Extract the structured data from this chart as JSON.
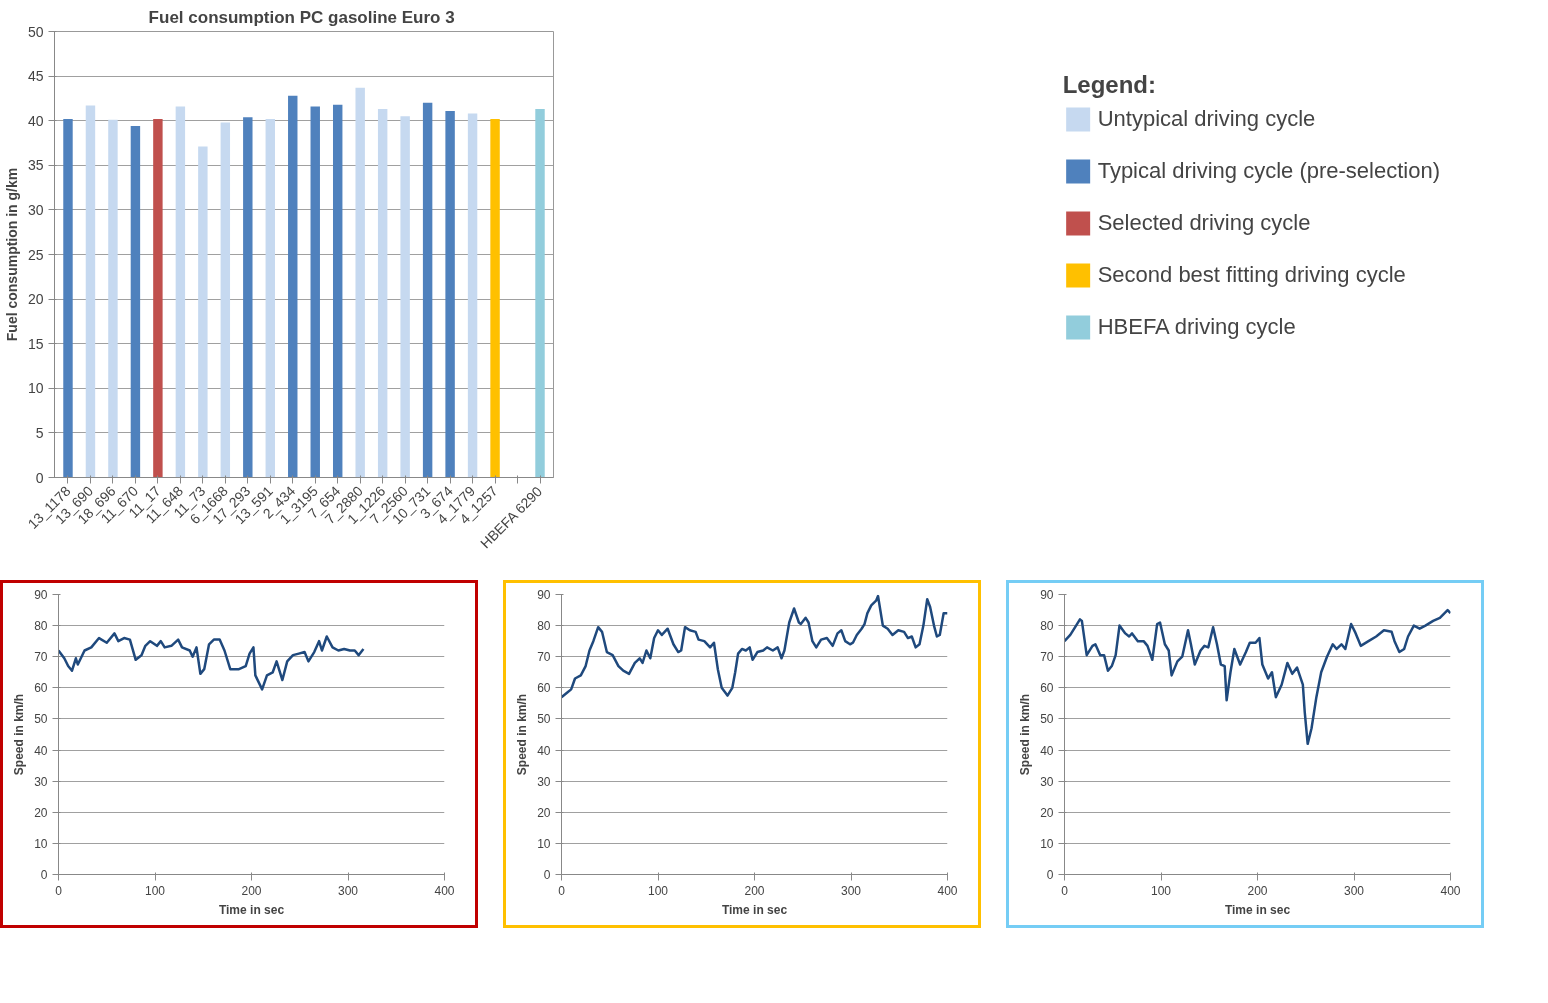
{
  "chart_data": [
    {
      "type": "bar",
      "title": "Fuel consumption  PC gasoline Euro 3",
      "ylabel": "Fuel consumption in g/km",
      "legend_title": "Legend:",
      "categories": [
        "13_1178",
        "13_690",
        "18_696",
        "11_670",
        "11_17",
        "11_648",
        "11_73",
        "6_1668",
        "17_293",
        "13_591",
        "2_434",
        "1_3195",
        "7_654",
        "7_2880",
        "1_1226",
        "7_2560",
        "10_731",
        "3_674",
        "4_1779",
        "4_1257",
        null,
        "HBEFA 6290"
      ],
      "series": [
        {
          "name": "Untypical driving cycle",
          "color": "#c6d9f0",
          "values": [
            null,
            41.7,
            40.1,
            null,
            null,
            41.6,
            37.1,
            39.8,
            null,
            40.2,
            null,
            null,
            null,
            43.7,
            41.3,
            40.5,
            null,
            null,
            40.8,
            null,
            null,
            null
          ]
        },
        {
          "name": "Typical driving cycle (pre-selection)",
          "color": "#4f81bd",
          "values": [
            40.2,
            null,
            null,
            39.4,
            null,
            null,
            null,
            null,
            40.4,
            null,
            42.8,
            41.6,
            41.8,
            null,
            null,
            null,
            42.0,
            41.1,
            null,
            null,
            null,
            null
          ]
        },
        {
          "name": "Selected driving cycle",
          "color": "#c0504d",
          "values": [
            null,
            null,
            null,
            null,
            40.2,
            null,
            null,
            null,
            null,
            null,
            null,
            null,
            null,
            null,
            null,
            null,
            null,
            null,
            null,
            null,
            null,
            null
          ]
        },
        {
          "name": "Second best fitting driving cycle",
          "color": "#ffc000",
          "values": [
            null,
            null,
            null,
            null,
            null,
            null,
            null,
            null,
            null,
            null,
            null,
            null,
            null,
            null,
            null,
            null,
            null,
            null,
            null,
            40.2,
            null,
            null
          ]
        },
        {
          "name": "HBEFA driving cycle",
          "color": "#92cddc",
          "values": [
            null,
            null,
            null,
            null,
            null,
            null,
            null,
            null,
            null,
            null,
            null,
            null,
            null,
            null,
            null,
            null,
            null,
            null,
            null,
            null,
            null,
            41.3
          ]
        }
      ],
      "ylim": [
        0,
        50
      ],
      "yticks": [
        0,
        5,
        10,
        15,
        20,
        25,
        30,
        35,
        40,
        45,
        50
      ],
      "grid": "y",
      "legend": "right"
    },
    {
      "type": "line",
      "xlabel": "Time in sec",
      "ylabel": "Speed in km/h",
      "xlim": [
        0,
        400
      ],
      "xticks": [
        0,
        100,
        200,
        300,
        400
      ],
      "ylim": [
        0,
        90
      ],
      "yticks": [
        0,
        10,
        20,
        30,
        40,
        50,
        60,
        70,
        80,
        90
      ],
      "grid": "y",
      "series": [
        {
          "color": "#1f497d",
          "x": [
            0,
            6,
            10,
            14,
            18,
            20,
            27,
            34,
            42,
            50,
            58,
            62,
            68,
            74,
            80,
            86,
            90,
            95,
            102,
            106,
            110,
            117,
            124,
            128,
            136,
            139,
            143,
            147,
            151,
            156,
            161,
            167,
            172,
            178,
            187,
            194,
            198,
            202,
            204,
            211,
            216,
            222,
            226,
            232,
            237,
            243,
            249,
            255,
            259,
            265,
            270,
            273,
            278,
            284,
            290,
            296,
            302,
            307,
            311,
            316
          ],
          "values": [
            72,
            69.5,
            67,
            65.5,
            69.5,
            67.5,
            72,
            73,
            76,
            74.5,
            77.5,
            75,
            76,
            75.5,
            69,
            70.5,
            73.5,
            75,
            73.5,
            75,
            73,
            73.5,
            75.5,
            73,
            72,
            70,
            73,
            64.5,
            66,
            74,
            75.5,
            75.5,
            72,
            66,
            66,
            67,
            71,
            73,
            64,
            59.5,
            64,
            65,
            68.5,
            62.5,
            68.5,
            70.5,
            71,
            71.5,
            68.5,
            71.5,
            75,
            72,
            76.5,
            73,
            72,
            72.5,
            72,
            72,
            70.5,
            72.5
          ]
        }
      ]
    },
    {
      "type": "line",
      "xlabel": "Time in sec",
      "ylabel": "Speed in km/h",
      "xlim": [
        0,
        400
      ],
      "xticks": [
        0,
        100,
        200,
        300,
        400
      ],
      "ylim": [
        0,
        90
      ],
      "yticks": [
        0,
        10,
        20,
        30,
        40,
        50,
        60,
        70,
        80,
        90
      ],
      "grid": "y",
      "series": [
        {
          "color": "#1f497d",
          "x": [
            0,
            6,
            10,
            14,
            20,
            25,
            29,
            33,
            38,
            42,
            47,
            53,
            59,
            64,
            70,
            76,
            81,
            84,
            88,
            92,
            96,
            100,
            104,
            110,
            116,
            121,
            124,
            128,
            133,
            139,
            142,
            148,
            154,
            158,
            162,
            166,
            172,
            177,
            180,
            183,
            187,
            191,
            195,
            198,
            203,
            209,
            213,
            219,
            224,
            228,
            231,
            236,
            241,
            246,
            248,
            253,
            256,
            260,
            264,
            269,
            275,
            281,
            286,
            290,
            294,
            299,
            302,
            306,
            311,
            314,
            317,
            321,
            326,
            328,
            333,
            338,
            343,
            349,
            355,
            359,
            363,
            367,
            371,
            375,
            379,
            382,
            386,
            389,
            392,
            396,
            400
          ],
          "values": [
            57,
            58.5,
            59.5,
            63,
            64,
            67,
            72,
            75,
            79.5,
            78,
            71.5,
            70.5,
            67,
            65.5,
            64.5,
            68,
            69.5,
            68,
            72,
            69.5,
            76,
            78.5,
            77,
            79,
            74,
            71.5,
            72,
            79.5,
            78.5,
            78,
            75.5,
            75,
            73,
            74.5,
            66,
            60,
            57.5,
            60,
            65,
            71,
            72.5,
            72,
            73,
            69,
            71.5,
            72,
            73,
            72,
            73,
            69.5,
            72,
            81,
            85.5,
            81,
            80.5,
            82.5,
            81,
            75,
            73,
            75.5,
            76,
            73.5,
            77.5,
            78.5,
            75,
            74,
            74.5,
            77,
            79,
            80.5,
            84,
            86.5,
            88,
            89.5,
            80,
            79,
            77,
            78.5,
            78,
            76,
            76.5,
            73,
            74,
            80,
            88.5,
            86,
            80,
            76.5,
            77,
            84,
            84
          ]
        }
      ]
    },
    {
      "type": "line",
      "xlabel": "Time in sec",
      "ylabel": "Speed in km/h",
      "xlim": [
        0,
        400
      ],
      "xticks": [
        0,
        100,
        200,
        300,
        400
      ],
      "ylim": [
        0,
        90
      ],
      "yticks": [
        0,
        10,
        20,
        30,
        40,
        50,
        60,
        70,
        80,
        90
      ],
      "grid": "y",
      "series": [
        {
          "color": "#1f497d",
          "x": [
            0,
            6,
            12,
            16,
            18,
            23,
            29,
            32,
            37,
            41,
            45,
            49,
            53,
            57,
            63,
            67,
            70,
            76,
            82,
            86,
            91,
            96,
            99,
            104,
            108,
            111,
            117,
            122,
            128,
            131,
            135,
            141,
            145,
            149,
            154,
            158,
            162,
            166,
            168,
            172,
            176,
            182,
            188,
            192,
            198,
            202,
            205,
            211,
            215,
            219,
            225,
            231,
            236,
            241,
            247,
            249,
            252,
            256,
            261,
            266,
            272,
            278,
            282,
            287,
            291,
            297,
            301,
            307,
            315,
            323,
            331,
            339,
            342,
            347,
            352,
            356,
            362,
            368,
            374,
            382,
            389,
            397,
            400
          ],
          "values": [
            75,
            77,
            80,
            82,
            81.5,
            70.5,
            73.5,
            74,
            70.5,
            70.5,
            65.5,
            67,
            70.5,
            80,
            77.5,
            76.5,
            77.5,
            75,
            75,
            73.5,
            69,
            80.5,
            81,
            74,
            72,
            64,
            68.5,
            70,
            78.5,
            74,
            67.5,
            72,
            73.5,
            73,
            79.5,
            74,
            67.5,
            67,
            56,
            65,
            72.5,
            67.5,
            71.5,
            74.5,
            74.5,
            76,
            67.5,
            63,
            65,
            57,
            61,
            68,
            64.5,
            66.5,
            61,
            52,
            42,
            47,
            57,
            65,
            70,
            74,
            72.5,
            74,
            72.5,
            80.5,
            78,
            73.5,
            75,
            76.5,
            78.5,
            78,
            75,
            71.5,
            72.5,
            76.5,
            80,
            79,
            80,
            81.5,
            82.5,
            85,
            84
          ]
        }
      ]
    }
  ]
}
